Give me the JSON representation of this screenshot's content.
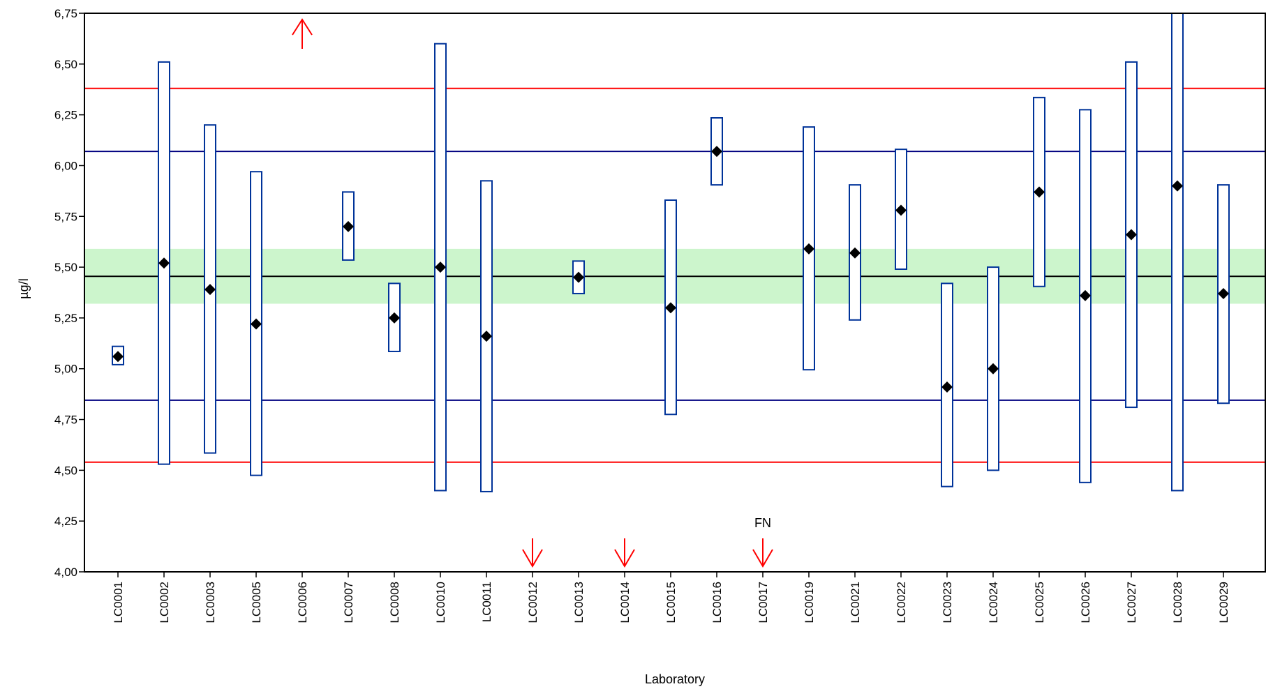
{
  "chart_data": {
    "type": "scatter",
    "xlabel": "Laboratory",
    "ylabel": "µg/l",
    "ylim": [
      4.0,
      6.75
    ],
    "yticks": [
      "4,00",
      "4,25",
      "4,50",
      "4,75",
      "5,00",
      "5,25",
      "5,50",
      "5,75",
      "6,00",
      "6,25",
      "6,50",
      "6,75"
    ],
    "grid": false,
    "assigned_value": 5.455,
    "assigned_band": [
      5.32,
      5.59
    ],
    "inner_limits": [
      4.845,
      6.07
    ],
    "outer_limits": [
      4.54,
      6.38
    ],
    "colors": {
      "assigned": "#000000",
      "band": "#ccf5cc",
      "inner_limits": "#000080",
      "outer_limits": "#ff0000",
      "interval": "#003399",
      "point": "#000000",
      "arrow": "#ff0000"
    },
    "labs": [
      {
        "id": "LC0001",
        "value": 5.06,
        "low": 5.02,
        "high": 5.11
      },
      {
        "id": "LC0002",
        "value": 5.52,
        "low": 4.53,
        "high": 6.51
      },
      {
        "id": "LC0003",
        "value": 5.39,
        "low": 4.585,
        "high": 6.2
      },
      {
        "id": "LC0005",
        "value": 5.22,
        "low": 4.475,
        "high": 5.97
      },
      {
        "id": "LC0006",
        "value": null,
        "low": null,
        "high": null,
        "arrow": "up"
      },
      {
        "id": "LC0007",
        "value": 5.7,
        "low": 5.535,
        "high": 5.87
      },
      {
        "id": "LC0008",
        "value": 5.25,
        "low": 5.085,
        "high": 5.42
      },
      {
        "id": "LC0010",
        "value": 5.5,
        "low": 4.4,
        "high": 6.6
      },
      {
        "id": "LC0011",
        "value": 5.16,
        "low": 4.395,
        "high": 5.925
      },
      {
        "id": "LC0012",
        "value": null,
        "low": null,
        "high": null,
        "arrow": "down"
      },
      {
        "id": "LC0013",
        "value": 5.45,
        "low": 5.37,
        "high": 5.53
      },
      {
        "id": "LC0014",
        "value": null,
        "low": null,
        "high": null,
        "arrow": "down"
      },
      {
        "id": "LC0015",
        "value": 5.3,
        "low": 4.775,
        "high": 5.83
      },
      {
        "id": "LC0016",
        "value": 6.07,
        "low": 5.905,
        "high": 6.235
      },
      {
        "id": "LC0017",
        "value": null,
        "low": null,
        "high": null,
        "arrow": "down",
        "annotation": "FN"
      },
      {
        "id": "LC0019",
        "value": 5.59,
        "low": 4.995,
        "high": 6.19
      },
      {
        "id": "LC0021",
        "value": 5.57,
        "low": 5.24,
        "high": 5.905
      },
      {
        "id": "LC0022",
        "value": 5.78,
        "low": 5.49,
        "high": 6.08
      },
      {
        "id": "LC0023",
        "value": 4.91,
        "low": 4.42,
        "high": 5.42
      },
      {
        "id": "LC0024",
        "value": 5.0,
        "low": 4.5,
        "high": 5.5
      },
      {
        "id": "LC0025",
        "value": 5.87,
        "low": 5.405,
        "high": 6.335
      },
      {
        "id": "LC0026",
        "value": 5.36,
        "low": 4.44,
        "high": 6.275
      },
      {
        "id": "LC0027",
        "value": 5.66,
        "low": 4.81,
        "high": 6.51
      },
      {
        "id": "LC0028",
        "value": 5.9,
        "low": 4.4,
        "high": 6.75
      },
      {
        "id": "LC0029",
        "value": 5.37,
        "low": 4.83,
        "high": 5.905
      }
    ]
  }
}
